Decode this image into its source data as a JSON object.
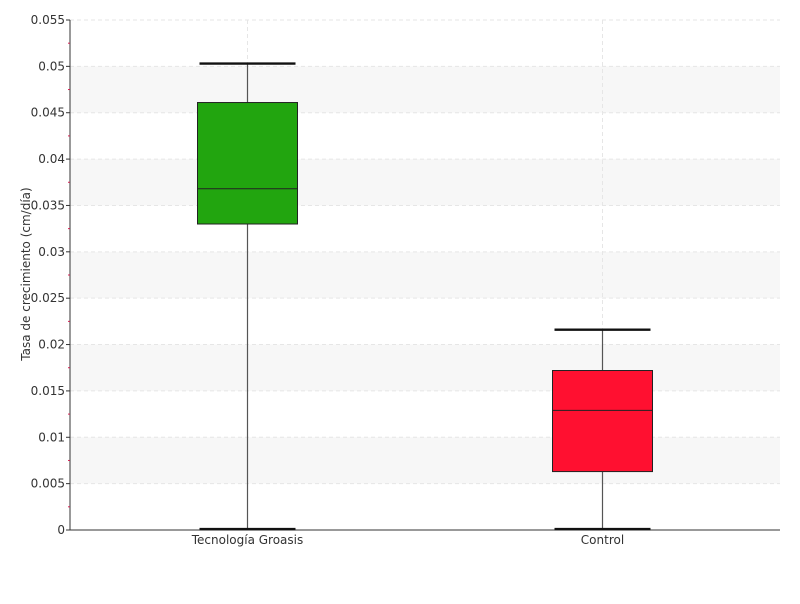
{
  "chart_data": {
    "type": "boxplot",
    "title": "",
    "xlabel": "",
    "ylabel": "Tasa de crecimiento (cm/día)",
    "ylim": [
      0,
      0.055
    ],
    "yticks": [
      "0",
      "0.005",
      "0.01",
      "0.015",
      "0.02",
      "0.025",
      "0.03",
      "0.035",
      "0.04",
      "0.045",
      "0.05",
      "0.055"
    ],
    "ytick_values": [
      0,
      0.005,
      0.01,
      0.015,
      0.02,
      0.025,
      0.03,
      0.035,
      0.04,
      0.045,
      0.05,
      0.055
    ],
    "grid": true,
    "categories": [
      "Tecnología Groasis",
      "Control"
    ],
    "boxes": [
      {
        "category": "Tecnología Groasis",
        "min": 0.0001,
        "q1": 0.033,
        "median": 0.0368,
        "q3": 0.0461,
        "max": 0.0503,
        "color": "#22a50f"
      },
      {
        "category": "Control",
        "min": 0.0001,
        "q1": 0.0063,
        "median": 0.0129,
        "q3": 0.0172,
        "max": 0.0216,
        "color": "#ff1030"
      }
    ]
  }
}
